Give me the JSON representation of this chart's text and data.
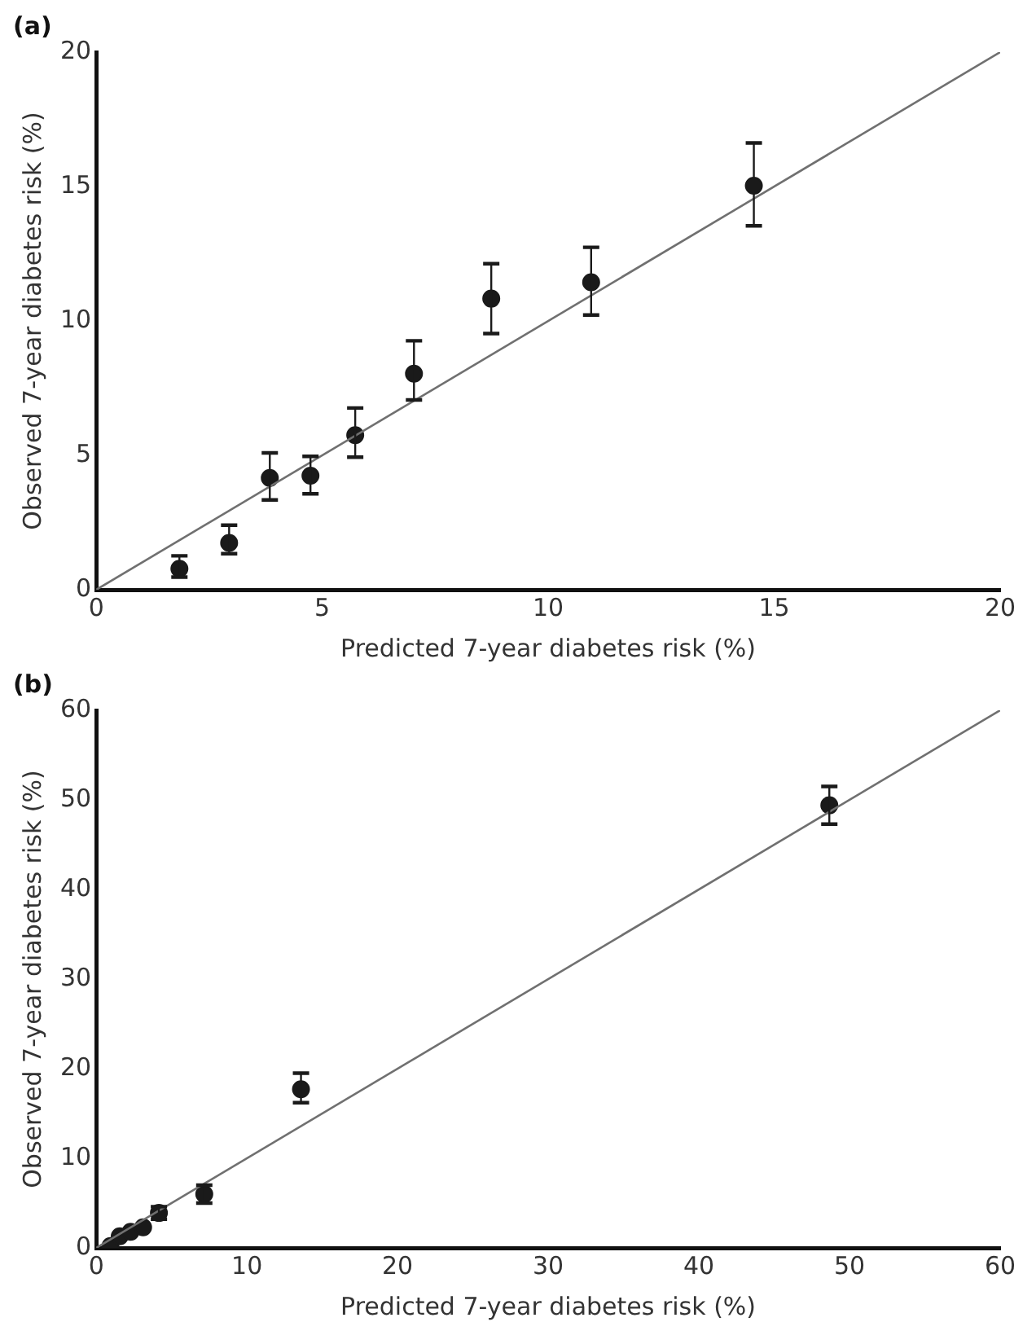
{
  "chart_data": [
    {
      "type": "scatter",
      "title": "(a)",
      "xlabel": "Predicted 7-year diabetes risk (%)",
      "ylabel": "Observed 7-year diabetes risk (%)",
      "xlim": [
        0,
        20
      ],
      "ylim": [
        0,
        20
      ],
      "xticks": [
        0,
        5,
        10,
        15,
        20
      ],
      "yticks": [
        0,
        5,
        10,
        15,
        20
      ],
      "grid": false,
      "legend": false,
      "series": [
        {
          "type": "line",
          "color": "#707070",
          "marker": "none",
          "x": [
            0,
            20
          ],
          "values": [
            0,
            20
          ]
        },
        {
          "color": "#1a1a1a",
          "marker": "circle",
          "x": [
            1.84,
            2.94,
            3.84,
            4.74,
            5.73,
            7.03,
            8.74,
            10.95,
            14.55
          ],
          "values": [
            0.78,
            1.74,
            4.16,
            4.24,
            5.75,
            8.04,
            10.83,
            11.44,
            15.03
          ],
          "errors": [
            [
              0.47,
              1.26
            ],
            [
              1.34,
              2.4
            ],
            [
              3.34,
              5.09
            ],
            [
              3.57,
              4.96
            ],
            [
              4.93,
              6.76
            ],
            [
              7.06,
              9.26
            ],
            [
              9.53,
              12.13
            ],
            [
              10.22,
              12.74
            ],
            [
              13.54,
              16.62
            ]
          ]
        }
      ]
    },
    {
      "type": "scatter",
      "title": "(b)",
      "xlabel": "Predicted 7-year diabetes risk (%)",
      "ylabel": "Observed 7-year diabetes risk (%)",
      "xlim": [
        0,
        60
      ],
      "ylim": [
        0,
        60
      ],
      "xticks": [
        0,
        10,
        20,
        30,
        40,
        50,
        60
      ],
      "yticks": [
        0,
        10,
        20,
        30,
        40,
        50,
        60
      ],
      "grid": false,
      "legend": false,
      "series": [
        {
          "type": "line",
          "color": "#707070",
          "marker": "none",
          "x": [
            0,
            60
          ],
          "values": [
            0,
            60
          ]
        },
        {
          "color": "#1a1a1a",
          "marker": "circle",
          "x": [
            0.94,
            1.56,
            2.28,
            3.11,
            4.16,
            7.17,
            13.59,
            48.66
          ],
          "values": [
            0.2,
            1.3,
            1.8,
            2.3,
            3.9,
            6.0,
            17.7,
            49.4
          ],
          "errors": [
            null,
            null,
            null,
            null,
            [
              3.2,
              4.6
            ],
            [
              5.0,
              7.0
            ],
            [
              16.2,
              19.5
            ],
            [
              47.3,
              51.5
            ]
          ]
        }
      ]
    }
  ]
}
